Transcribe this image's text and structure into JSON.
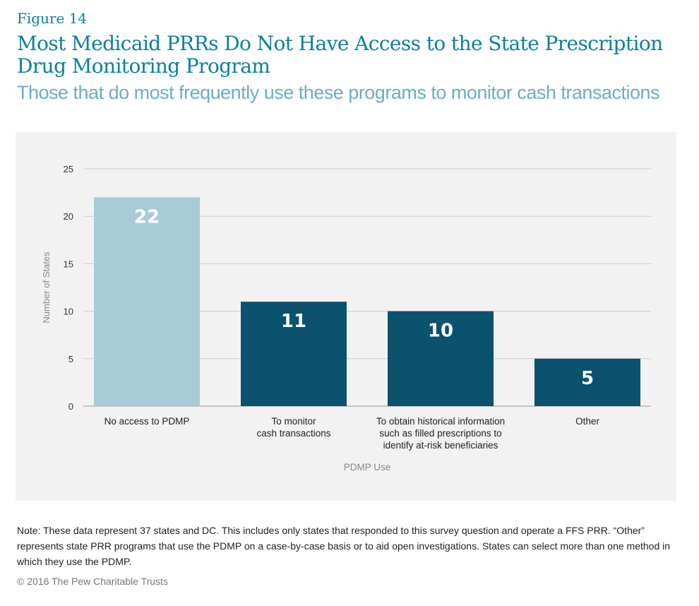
{
  "figure_label": "Figure 14",
  "title": "Most Medicaid PRRs Do Not Have Access to the State Prescription Drug Monitoring Program",
  "subtitle": "Those that do most frequently use these programs to monitor cash transactions",
  "chart_data": {
    "type": "bar",
    "categories": [
      [
        "No access to PDMP"
      ],
      [
        "To monitor",
        "cash transactions"
      ],
      [
        "To obtain historical information",
        "such as filled prescriptions to",
        "identify at-risk beneficiaries"
      ],
      [
        "Other"
      ]
    ],
    "values": [
      22,
      11,
      10,
      5
    ],
    "colors": [
      "#a9cbd8",
      "#0a526e",
      "#0a526e",
      "#0a526e"
    ],
    "xlabel": "PDMP Use",
    "ylabel": "Number of States",
    "ylim": [
      0,
      25
    ],
    "yticks": [
      0,
      5,
      10,
      15,
      20,
      25
    ],
    "grid": true
  },
  "note": "Note: These data represent 37 states and DC. This includes only states that responded to this survey question and operate a FFS PRR. “Other” represents state PRR programs that use the PDMP on a case-by-case basis or to aid open investigations. States can select more than one method in which they use the PDMP.",
  "copyright": "© 2016 The Pew Charitable Trusts"
}
